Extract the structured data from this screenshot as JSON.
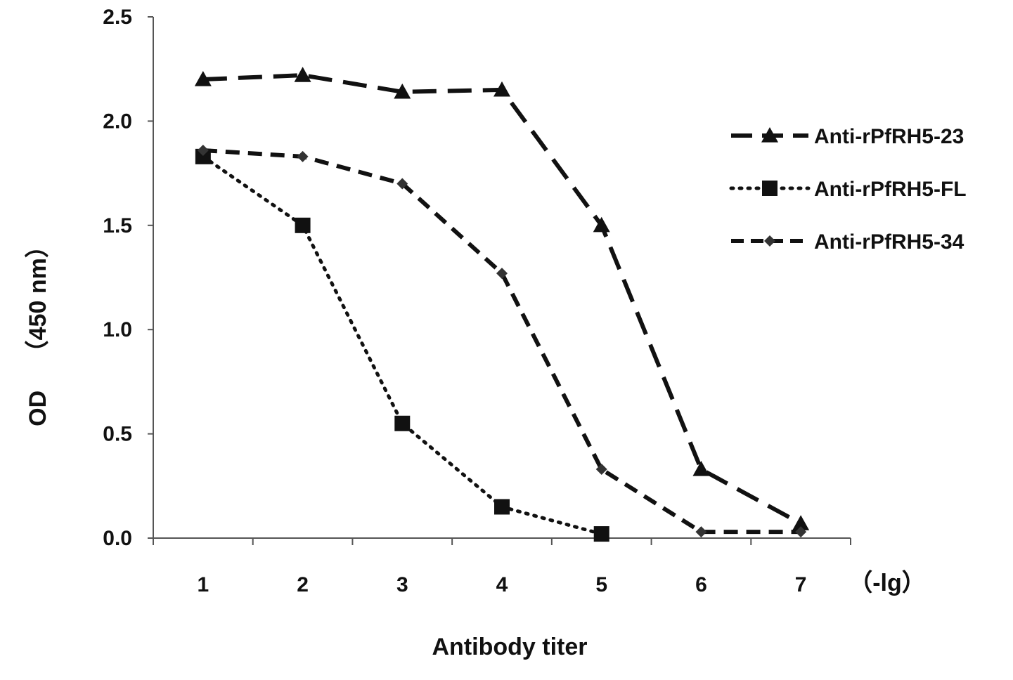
{
  "chart_data": {
    "type": "line",
    "title": "",
    "xlabel": "Antibody titer",
    "x_unit": "（-lg）",
    "ylabel_parts": [
      "OD",
      "（450 nm）"
    ],
    "categories": [
      "1",
      "2",
      "3",
      "4",
      "5",
      "6",
      "7"
    ],
    "x": [
      1,
      2,
      3,
      4,
      5,
      6,
      7
    ],
    "xlim": [
      0.5,
      7.5
    ],
    "ylim": [
      0,
      2.5
    ],
    "yticks": [
      "0.0",
      "0.5",
      "1.0",
      "1.5",
      "2.0",
      "2.5"
    ],
    "grid": false,
    "legend_position": "right",
    "series": [
      {
        "name": "Anti-rPfRH5-23",
        "values": [
          2.2,
          2.22,
          2.14,
          2.15,
          1.5,
          0.33,
          0.07
        ],
        "marker": "triangle",
        "line_style": "long-dash",
        "color": "#111111"
      },
      {
        "name": "Anti-rPfRH5-FL",
        "x_values": [
          1,
          2,
          3,
          4,
          5
        ],
        "values": [
          1.83,
          1.5,
          0.55,
          0.15,
          0.02
        ],
        "marker": "square",
        "line_style": "dotted",
        "color": "#111111"
      },
      {
        "name": "Anti-rPfRH5-34",
        "values": [
          1.86,
          1.83,
          1.7,
          1.27,
          0.33,
          0.03,
          0.03
        ],
        "marker": "diamond",
        "line_style": "short-dash",
        "color": "#111111"
      }
    ]
  }
}
